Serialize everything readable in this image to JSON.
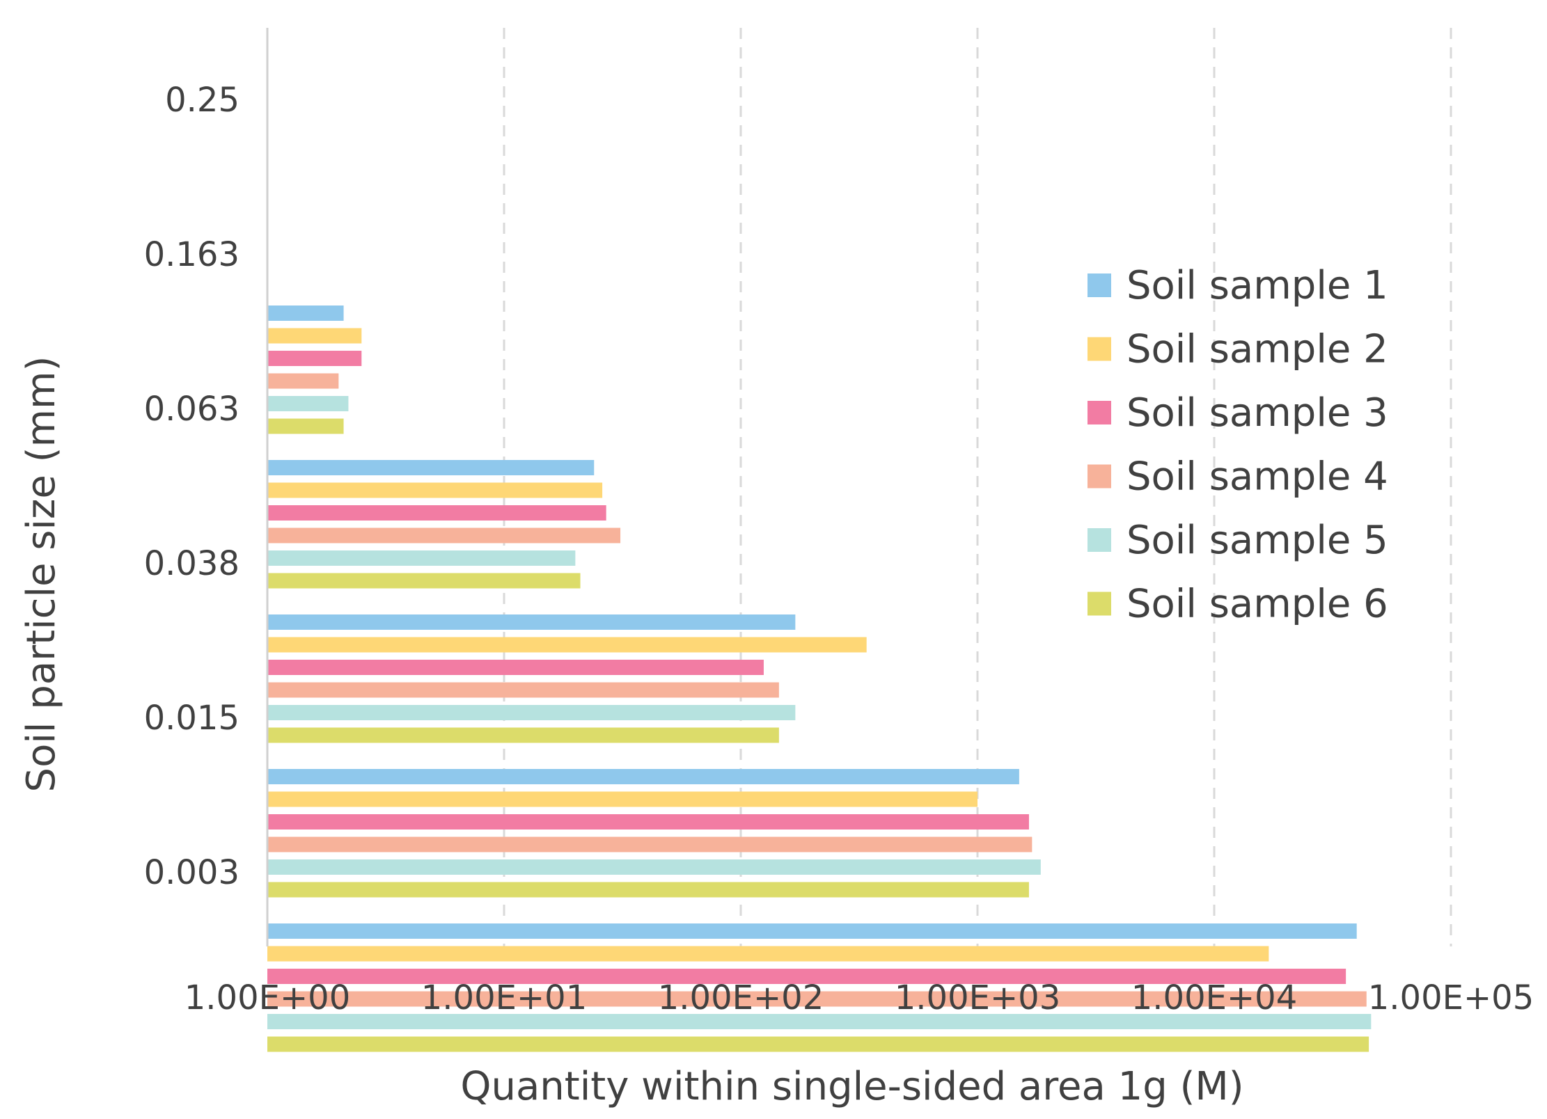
{
  "chart_data": {
    "type": "bar",
    "orientation": "horizontal",
    "x_scale": "log",
    "title": "",
    "xlabel": "Quantity within single-sided area 1g (M)",
    "ylabel": "Soil particle size (mm)",
    "xlim": [
      1,
      100000
    ],
    "x_ticks": [
      "1.00E+00",
      "1.00E+01",
      "1.00E+02",
      "1.00E+03",
      "1.00E+04",
      "1.00E+05"
    ],
    "x_tick_values": [
      1,
      10,
      100,
      1000,
      10000,
      100000
    ],
    "categories": [
      "0.25",
      "0.163",
      "0.063",
      "0.038",
      "0.015",
      "0.003"
    ],
    "grid": "vertical dashed",
    "legend_position": "right",
    "series": [
      {
        "name": "Soil sample 1",
        "color": "#8FC8EC",
        "values": [
          null,
          2.1,
          24,
          170,
          1500,
          40000
        ]
      },
      {
        "name": "Soil sample 2",
        "color": "#FED776",
        "values": [
          null,
          2.5,
          26,
          340,
          1000,
          17000
        ]
      },
      {
        "name": "Soil sample 3",
        "color": "#F27CA3",
        "values": [
          null,
          2.5,
          27,
          125,
          1650,
          36000
        ]
      },
      {
        "name": "Soil sample 4",
        "color": "#F7B29A",
        "values": [
          null,
          2.0,
          31,
          145,
          1700,
          44000
        ]
      },
      {
        "name": "Soil sample 5",
        "color": "#B6E2DF",
        "values": [
          null,
          2.2,
          20,
          170,
          1850,
          46000
        ]
      },
      {
        "name": "Soil sample 6",
        "color": "#DCDC6A",
        "values": [
          null,
          2.1,
          21,
          145,
          1650,
          45000
        ]
      }
    ]
  }
}
